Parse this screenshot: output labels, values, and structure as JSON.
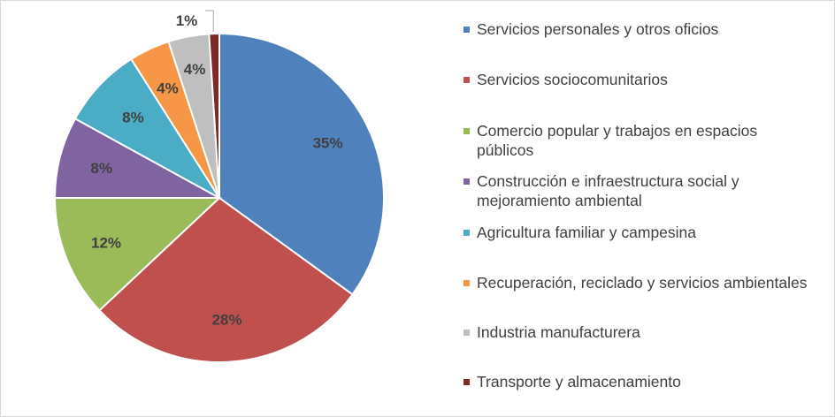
{
  "chart_data": {
    "type": "pie",
    "title": "",
    "start_angle_deg": 0,
    "direction": "clockwise",
    "legend_position": "right",
    "slices": [
      {
        "label": "Servicios personales  y otros oficios",
        "value": 35,
        "value_label": "35%",
        "color": "#4f81bd"
      },
      {
        "label": "Servicios sociocomunitarios",
        "value": 28,
        "value_label": "28%",
        "color": "#c0504d"
      },
      {
        "label": "Comercio popular y trabajos en espacios públicos",
        "value": 12,
        "value_label": "12%",
        "color": "#9bbb59"
      },
      {
        "label": "Construcción e infraestructura social y mejoramiento ambiental",
        "value": 8,
        "value_label": "8%",
        "color": "#8064a2"
      },
      {
        "label": "Agricultura familiar y campesina",
        "value": 8,
        "value_label": "8%",
        "color": "#4bacc6"
      },
      {
        "label": "Recuperación, reciclado y servicios ambientales",
        "value": 4,
        "value_label": "4%",
        "color": "#f79646"
      },
      {
        "label": "Industria manufacturera",
        "value": 4,
        "value_label": "4%",
        "color": "#bfbfbf"
      },
      {
        "label": "Transporte y almacenamiento",
        "value": 1,
        "value_label": "1%",
        "color": "#7f2a26"
      }
    ]
  }
}
